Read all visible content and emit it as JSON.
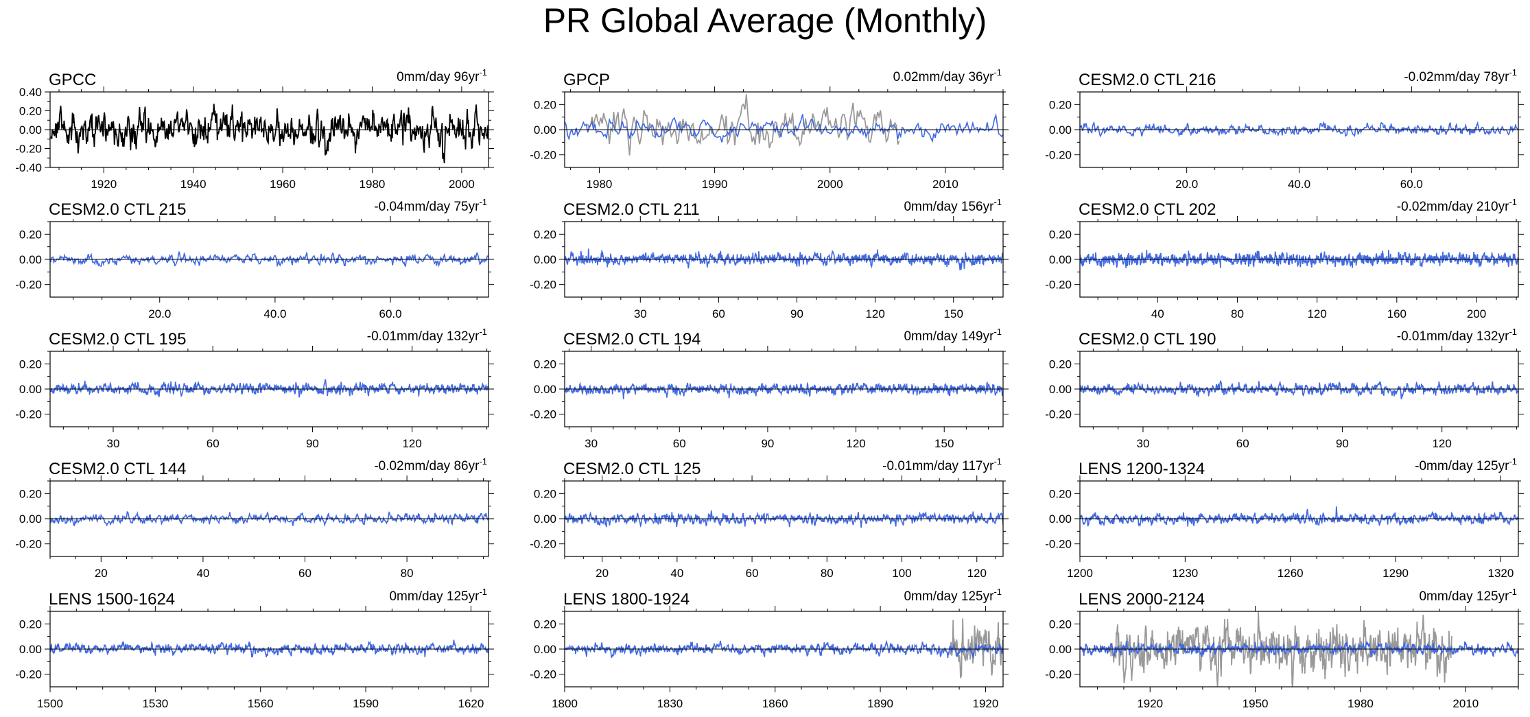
{
  "title": "PR Global Average (Monthly)",
  "colors": {
    "model": "#4169e1",
    "observation": "#000000",
    "observation_overlay": "#999999"
  },
  "chart_data": [
    {
      "type": "line",
      "title": "GPCC",
      "stat": "0mm/day 96yr",
      "stat_sup": "-1",
      "xlim": [
        1908,
        2006
      ],
      "ylim": [
        -0.4,
        0.4
      ],
      "xticks": [
        1920,
        1940,
        1960,
        1980,
        2000
      ],
      "xtick_labels": [
        "1920",
        "1940",
        "1960",
        "1980",
        "2000"
      ],
      "yticks": [
        -0.4,
        -0.2,
        0.0,
        0.2,
        0.4
      ],
      "ytick_labels": [
        "-0.40",
        "-0.20",
        "0.00",
        "0.20",
        "0.40"
      ],
      "series": [
        {
          "style": "observation",
          "x_start": 1908,
          "x_end": 2006,
          "amplitude": 0.09,
          "seed": 11
        }
      ]
    },
    {
      "type": "line",
      "title": "GPCP",
      "stat": "0.02mm/day 36yr",
      "stat_sup": "-1",
      "xlim": [
        1977,
        2015
      ],
      "ylim": [
        -0.3,
        0.3
      ],
      "xticks": [
        1980,
        1990,
        2000,
        2010
      ],
      "xtick_labels": [
        "1980",
        "1990",
        "2000",
        "2010"
      ],
      "yticks": [
        -0.2,
        0.0,
        0.2
      ],
      "ytick_labels": [
        "-0.20",
        "0.00",
        "0.20"
      ],
      "series": [
        {
          "style": "observation_overlay",
          "x_start": 1979,
          "x_end": 2006,
          "amplitude": 0.09,
          "seed": 21
        },
        {
          "style": "model",
          "x_start": 1977,
          "x_end": 2015,
          "amplitude": 0.035,
          "seed": 22
        }
      ]
    },
    {
      "type": "line",
      "title": "CESM2.0 CTL 216",
      "stat": "-0.02mm/day 78yr",
      "stat_sup": "-1",
      "xlim": [
        1,
        79
      ],
      "ylim": [
        -0.3,
        0.3
      ],
      "xticks": [
        20,
        40,
        60
      ],
      "xtick_labels": [
        "20.0",
        "40.0",
        "60.0"
      ],
      "yticks": [
        -0.2,
        0.0,
        0.2
      ],
      "ytick_labels": [
        "-0.20",
        "0.00",
        "0.20"
      ],
      "series": [
        {
          "style": "model",
          "x_start": 1,
          "x_end": 79,
          "amplitude": 0.02,
          "seed": 31
        }
      ]
    },
    {
      "type": "line",
      "title": "CESM2.0 CTL 215",
      "stat": "-0.04mm/day 75yr",
      "stat_sup": "-1",
      "xlim": [
        1,
        77
      ],
      "ylim": [
        -0.3,
        0.3
      ],
      "xticks": [
        20,
        40,
        60
      ],
      "xtick_labels": [
        "20.0",
        "40.0",
        "60.0"
      ],
      "yticks": [
        -0.2,
        0.0,
        0.2
      ],
      "ytick_labels": [
        "-0.20",
        "0.00",
        "0.20"
      ],
      "series": [
        {
          "style": "model",
          "x_start": 1,
          "x_end": 77,
          "amplitude": 0.02,
          "seed": 41
        }
      ]
    },
    {
      "type": "line",
      "title": "CESM2.0 CTL 211",
      "stat": "0mm/day 156yr",
      "stat_sup": "-1",
      "xlim": [
        1,
        169
      ],
      "ylim": [
        -0.3,
        0.3
      ],
      "xticks": [
        30,
        60,
        90,
        120,
        150
      ],
      "xtick_labels": [
        "30",
        "60",
        "90",
        "120",
        "150"
      ],
      "yticks": [
        -0.2,
        0.0,
        0.2
      ],
      "ytick_labels": [
        "-0.20",
        "0.00",
        "0.20"
      ],
      "series": [
        {
          "style": "model",
          "x_start": 1,
          "x_end": 169,
          "amplitude": 0.022,
          "seed": 51
        }
      ]
    },
    {
      "type": "line",
      "title": "CESM2.0 CTL 202",
      "stat": "-0.02mm/day 210yr",
      "stat_sup": "-1",
      "xlim": [
        1,
        221
      ],
      "ylim": [
        -0.3,
        0.3
      ],
      "xticks": [
        40,
        80,
        120,
        160,
        200
      ],
      "xtick_labels": [
        "40",
        "80",
        "120",
        "160",
        "200"
      ],
      "yticks": [
        -0.2,
        0.0,
        0.2
      ],
      "ytick_labels": [
        "-0.20",
        "0.00",
        "0.20"
      ],
      "series": [
        {
          "style": "model",
          "x_start": 1,
          "x_end": 221,
          "amplitude": 0.024,
          "seed": 61
        }
      ]
    },
    {
      "type": "line",
      "title": "CESM2.0 CTL 195",
      "stat": "-0.01mm/day 132yr",
      "stat_sup": "-1",
      "xlim": [
        11,
        143
      ],
      "ylim": [
        -0.3,
        0.3
      ],
      "xticks": [
        30,
        60,
        90,
        120
      ],
      "xtick_labels": [
        "30",
        "60",
        "90",
        "120"
      ],
      "yticks": [
        -0.2,
        0.0,
        0.2
      ],
      "ytick_labels": [
        "-0.20",
        "0.00",
        "0.20"
      ],
      "series": [
        {
          "style": "model",
          "x_start": 11,
          "x_end": 143,
          "amplitude": 0.022,
          "seed": 71
        }
      ]
    },
    {
      "type": "line",
      "title": "CESM2.0 CTL 194",
      "stat": "0mm/day 149yr",
      "stat_sup": "-1",
      "xlim": [
        21,
        170
      ],
      "ylim": [
        -0.3,
        0.3
      ],
      "xticks": [
        30,
        60,
        90,
        120,
        150
      ],
      "xtick_labels": [
        "30",
        "60",
        "90",
        "120",
        "150"
      ],
      "yticks": [
        -0.2,
        0.0,
        0.2
      ],
      "ytick_labels": [
        "-0.20",
        "0.00",
        "0.20"
      ],
      "series": [
        {
          "style": "model",
          "x_start": 21,
          "x_end": 170,
          "amplitude": 0.02,
          "seed": 81
        }
      ]
    },
    {
      "type": "line",
      "title": "CESM2.0 CTL 190",
      "stat": "-0.01mm/day 132yr",
      "stat_sup": "-1",
      "xlim": [
        11,
        143
      ],
      "ylim": [
        -0.3,
        0.3
      ],
      "xticks": [
        30,
        60,
        90,
        120
      ],
      "xtick_labels": [
        "30",
        "60",
        "90",
        "120"
      ],
      "yticks": [
        -0.2,
        0.0,
        0.2
      ],
      "ytick_labels": [
        "-0.20",
        "0.00",
        "0.20"
      ],
      "series": [
        {
          "style": "model",
          "x_start": 11,
          "x_end": 143,
          "amplitude": 0.02,
          "seed": 91
        }
      ]
    },
    {
      "type": "line",
      "title": "CESM2.0 CTL 144",
      "stat": "-0.02mm/day 86yr",
      "stat_sup": "-1",
      "xlim": [
        10,
        96
      ],
      "ylim": [
        -0.3,
        0.3
      ],
      "xticks": [
        20,
        40,
        60,
        80
      ],
      "xtick_labels": [
        "20",
        "40",
        "60",
        "80"
      ],
      "yticks": [
        -0.2,
        0.0,
        0.2
      ],
      "ytick_labels": [
        "-0.20",
        "0.00",
        "0.20"
      ],
      "series": [
        {
          "style": "model",
          "x_start": 10,
          "x_end": 96,
          "amplitude": 0.02,
          "seed": 101
        }
      ]
    },
    {
      "type": "line",
      "title": "CESM2.0 CTL 125",
      "stat": "-0.01mm/day 117yr",
      "stat_sup": "-1",
      "xlim": [
        10,
        127
      ],
      "ylim": [
        -0.3,
        0.3
      ],
      "xticks": [
        20,
        40,
        60,
        80,
        100,
        120
      ],
      "xtick_labels": [
        "20",
        "40",
        "60",
        "80",
        "100",
        "120"
      ],
      "yticks": [
        -0.2,
        0.0,
        0.2
      ],
      "ytick_labels": [
        "-0.20",
        "0.00",
        "0.20"
      ],
      "series": [
        {
          "style": "model",
          "x_start": 10,
          "x_end": 127,
          "amplitude": 0.022,
          "seed": 111
        }
      ]
    },
    {
      "type": "line",
      "title": "LENS 1200-1324",
      "stat": "-0mm/day 125yr",
      "stat_sup": "-1",
      "xlim": [
        1200,
        1325
      ],
      "ylim": [
        -0.3,
        0.3
      ],
      "xticks": [
        1200,
        1230,
        1260,
        1290,
        1320
      ],
      "xtick_labels": [
        "1200",
        "1230",
        "1260",
        "1290",
        "1320"
      ],
      "yticks": [
        -0.2,
        0.0,
        0.2
      ],
      "ytick_labels": [
        "-0.20",
        "0.00",
        "0.20"
      ],
      "series": [
        {
          "style": "model",
          "x_start": 1200,
          "x_end": 1325,
          "amplitude": 0.022,
          "seed": 121
        }
      ]
    },
    {
      "type": "line",
      "title": "LENS 1500-1624",
      "stat": "0mm/day 125yr",
      "stat_sup": "-1",
      "xlim": [
        1500,
        1625
      ],
      "ylim": [
        -0.3,
        0.3
      ],
      "xticks": [
        1500,
        1530,
        1560,
        1590,
        1620
      ],
      "xtick_labels": [
        "1500",
        "1530",
        "1560",
        "1590",
        "1620"
      ],
      "yticks": [
        -0.2,
        0.0,
        0.2
      ],
      "ytick_labels": [
        "-0.20",
        "0.00",
        "0.20"
      ],
      "series": [
        {
          "style": "model",
          "x_start": 1500,
          "x_end": 1625,
          "amplitude": 0.02,
          "seed": 131
        }
      ]
    },
    {
      "type": "line",
      "title": "LENS 1800-1924",
      "stat": "0mm/day 125yr",
      "stat_sup": "-1",
      "xlim": [
        1800,
        1925
      ],
      "ylim": [
        -0.3,
        0.3
      ],
      "xticks": [
        1800,
        1830,
        1860,
        1890,
        1920
      ],
      "xtick_labels": [
        "1800",
        "1830",
        "1860",
        "1890",
        "1920"
      ],
      "yticks": [
        -0.2,
        0.0,
        0.2
      ],
      "ytick_labels": [
        "-0.20",
        "0.00",
        "0.20"
      ],
      "series": [
        {
          "style": "observation_overlay",
          "x_start": 1910,
          "x_end": 1925,
          "amplitude": 0.09,
          "seed": 141
        },
        {
          "style": "model",
          "x_start": 1800,
          "x_end": 1925,
          "amplitude": 0.02,
          "seed": 142
        }
      ]
    },
    {
      "type": "line",
      "title": "LENS 2000-2124",
      "stat": "0mm/day 125yr",
      "stat_sup": "-1",
      "xlim": [
        1900,
        2025
      ],
      "ylim": [
        -0.3,
        0.3
      ],
      "xticks": [
        1920,
        1950,
        1980,
        2010
      ],
      "xtick_labels": [
        "1920",
        "1950",
        "1980",
        "2010"
      ],
      "yticks": [
        -0.2,
        0.0,
        0.2
      ],
      "ytick_labels": [
        "-0.20",
        "0.00",
        "0.20"
      ],
      "series": [
        {
          "style": "observation_overlay",
          "x_start": 1908,
          "x_end": 2006,
          "amplitude": 0.09,
          "seed": 151
        },
        {
          "style": "model",
          "x_start": 1900,
          "x_end": 2025,
          "amplitude": 0.02,
          "seed": 152
        }
      ]
    }
  ]
}
